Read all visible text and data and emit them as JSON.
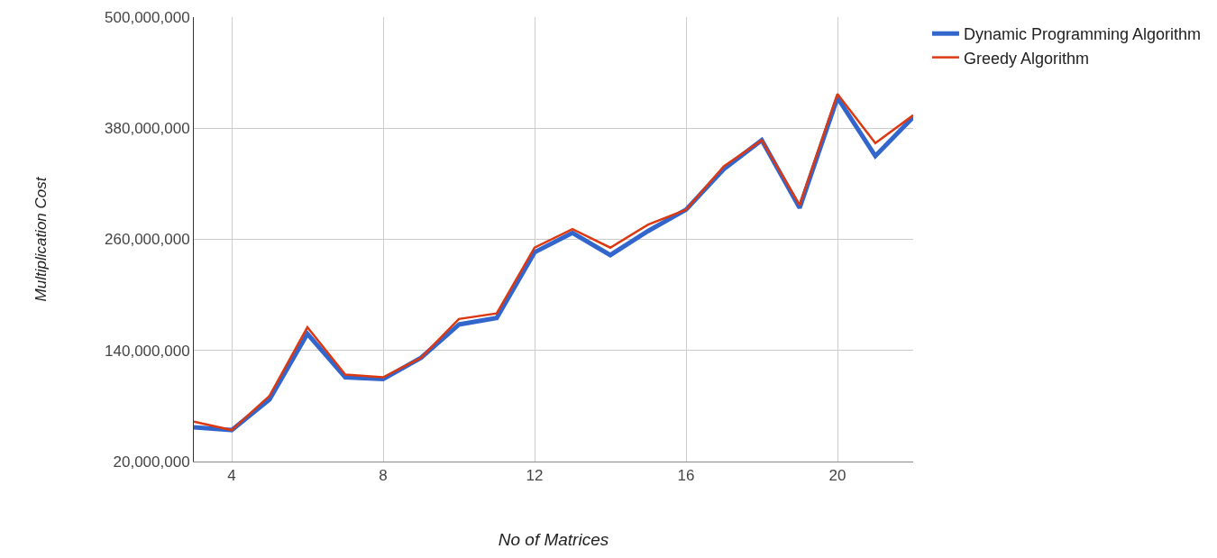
{
  "chart_data": {
    "type": "line",
    "xlabel": "No of Matrices",
    "ylabel": "Multiplication Cost",
    "x": [
      3,
      4,
      5,
      6,
      7,
      8,
      9,
      10,
      11,
      12,
      13,
      14,
      15,
      16,
      17,
      18,
      19,
      20,
      21,
      22
    ],
    "series": [
      {
        "name": "Dynamic Programming Algorithm",
        "color": "#3366cc",
        "values": [
          57000000,
          54000000,
          87000000,
          158000000,
          111000000,
          109000000,
          132000000,
          168000000,
          175000000,
          246000000,
          267000000,
          243000000,
          269000000,
          292000000,
          336000000,
          367000000,
          294000000,
          413000000,
          350000000,
          392000000
        ]
      },
      {
        "name": "Greedy Algorithm",
        "color": "#dc3912",
        "values": [
          63000000,
          54000000,
          91000000,
          165000000,
          114000000,
          111000000,
          132000000,
          174000000,
          180000000,
          251000000,
          271000000,
          251000000,
          276000000,
          292000000,
          339000000,
          367000000,
          297000000,
          417000000,
          364000000,
          394000000
        ]
      }
    ],
    "xlim": [
      3,
      22
    ],
    "xticks": [
      4,
      8,
      12,
      16,
      20
    ],
    "ylim": [
      20000000,
      500000000
    ],
    "yticks": [
      {
        "value": 20000000,
        "label": "20,000,000"
      },
      {
        "value": 140000000,
        "label": "140,000,000"
      },
      {
        "value": 260000000,
        "label": "260,000,000"
      },
      {
        "value": 380000000,
        "label": "380,000,000"
      },
      {
        "value": 500000000,
        "label": "500,000,000"
      }
    ],
    "grid": true,
    "legend": "top right",
    "marker": "none",
    "line_style": "solid"
  }
}
